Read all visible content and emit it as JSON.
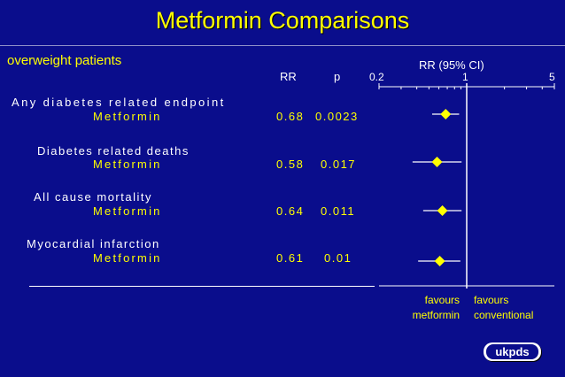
{
  "slide": {
    "title": "Metformin Comparisons",
    "subtitle": "overweight patients",
    "colors": {
      "background": "#0a0d8c",
      "title": "#ffff00",
      "text": "#ffffff",
      "marker": "#ffff00"
    }
  },
  "columns": {
    "rr": "RR",
    "p": "p",
    "plot": "RR (95% CI)"
  },
  "rows": [
    {
      "label": "Any diabetes related endpoint",
      "group": "Metformin",
      "rr": "0.68",
      "p": "0.0023"
    },
    {
      "label": "Diabetes related deaths",
      "group": "Metformin",
      "rr": "0.58",
      "p": "0.017"
    },
    {
      "label": "All cause mortality",
      "group": "Metformin",
      "rr": "0.64",
      "p": "0.011"
    },
    {
      "label": "Myocardial infarction",
      "group": "Metformin",
      "rr": "0.61",
      "p": "0.01"
    }
  ],
  "footer": {
    "favours_left_1": "favours",
    "favours_left_2": "metformin",
    "favours_right_1": "favours",
    "favours_right_2": "conventional"
  },
  "logo": {
    "text": "ukpds"
  },
  "chart_data": {
    "type": "forest",
    "title": "RR (95% CI)",
    "scale": "log",
    "xlim": [
      0.2,
      5
    ],
    "reference_line": 1,
    "tick_labels": [
      "0.2",
      "1",
      "5"
    ],
    "minor_ticks": [
      0.3,
      0.4,
      0.5,
      0.6,
      0.7,
      0.8,
      0.9,
      2,
      3,
      4
    ],
    "rows": [
      {
        "name": "Any diabetes related endpoint",
        "rr": 0.68,
        "ci": [
          0.53,
          0.87
        ]
      },
      {
        "name": "Diabetes related deaths",
        "rr": 0.58,
        "ci": [
          0.37,
          0.91
        ]
      },
      {
        "name": "All cause mortality",
        "rr": 0.64,
        "ci": [
          0.45,
          0.91
        ]
      },
      {
        "name": "Myocardial infarction",
        "rr": 0.61,
        "ci": [
          0.41,
          0.89
        ]
      }
    ],
    "xlabel_left": "favours metformin",
    "xlabel_right": "favours conventional"
  }
}
